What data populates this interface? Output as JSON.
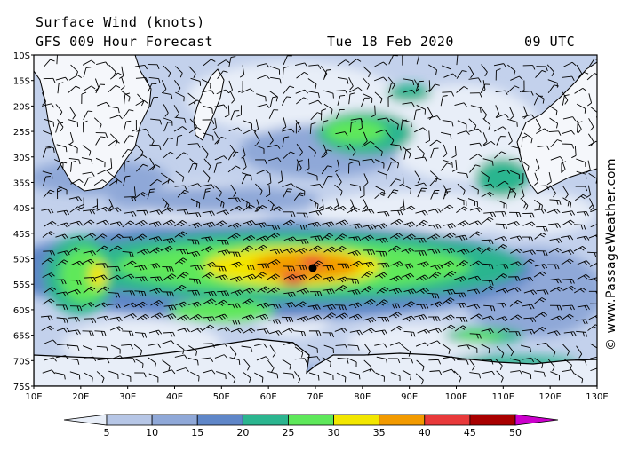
{
  "header": {
    "title": "Surface Wind (knots)",
    "model_line": "GFS 009 Hour Forecast",
    "date": "Tue 18 Feb 2020",
    "time": "09 UTC"
  },
  "map": {
    "lat_labels": [
      "10S",
      "15S",
      "20S",
      "25S",
      "30S",
      "35S",
      "40S",
      "45S",
      "50S",
      "55S",
      "60S",
      "65S",
      "70S",
      "75S"
    ],
    "lon_labels": [
      "10E",
      "20E",
      "30E",
      "40E",
      "50E",
      "60E",
      "70E",
      "80E",
      "90E",
      "100E",
      "110E",
      "120E",
      "130E"
    ],
    "land_color": "#ffffff",
    "coast_color": "#000000",
    "low_center_marker": "black-dot"
  },
  "colorbar": {
    "labels": [
      "5",
      "10",
      "15",
      "20",
      "25",
      "30",
      "35",
      "40",
      "45",
      "50"
    ],
    "colors": [
      "#e8eef8",
      "#b6c6e6",
      "#8fa8d8",
      "#5f86c8",
      "#2bb58f",
      "#5ee85a",
      "#f2e600",
      "#f29a00",
      "#e8393a",
      "#a80000",
      "#cc00cc"
    ]
  },
  "credit": "© www.PassageWeather.com"
}
